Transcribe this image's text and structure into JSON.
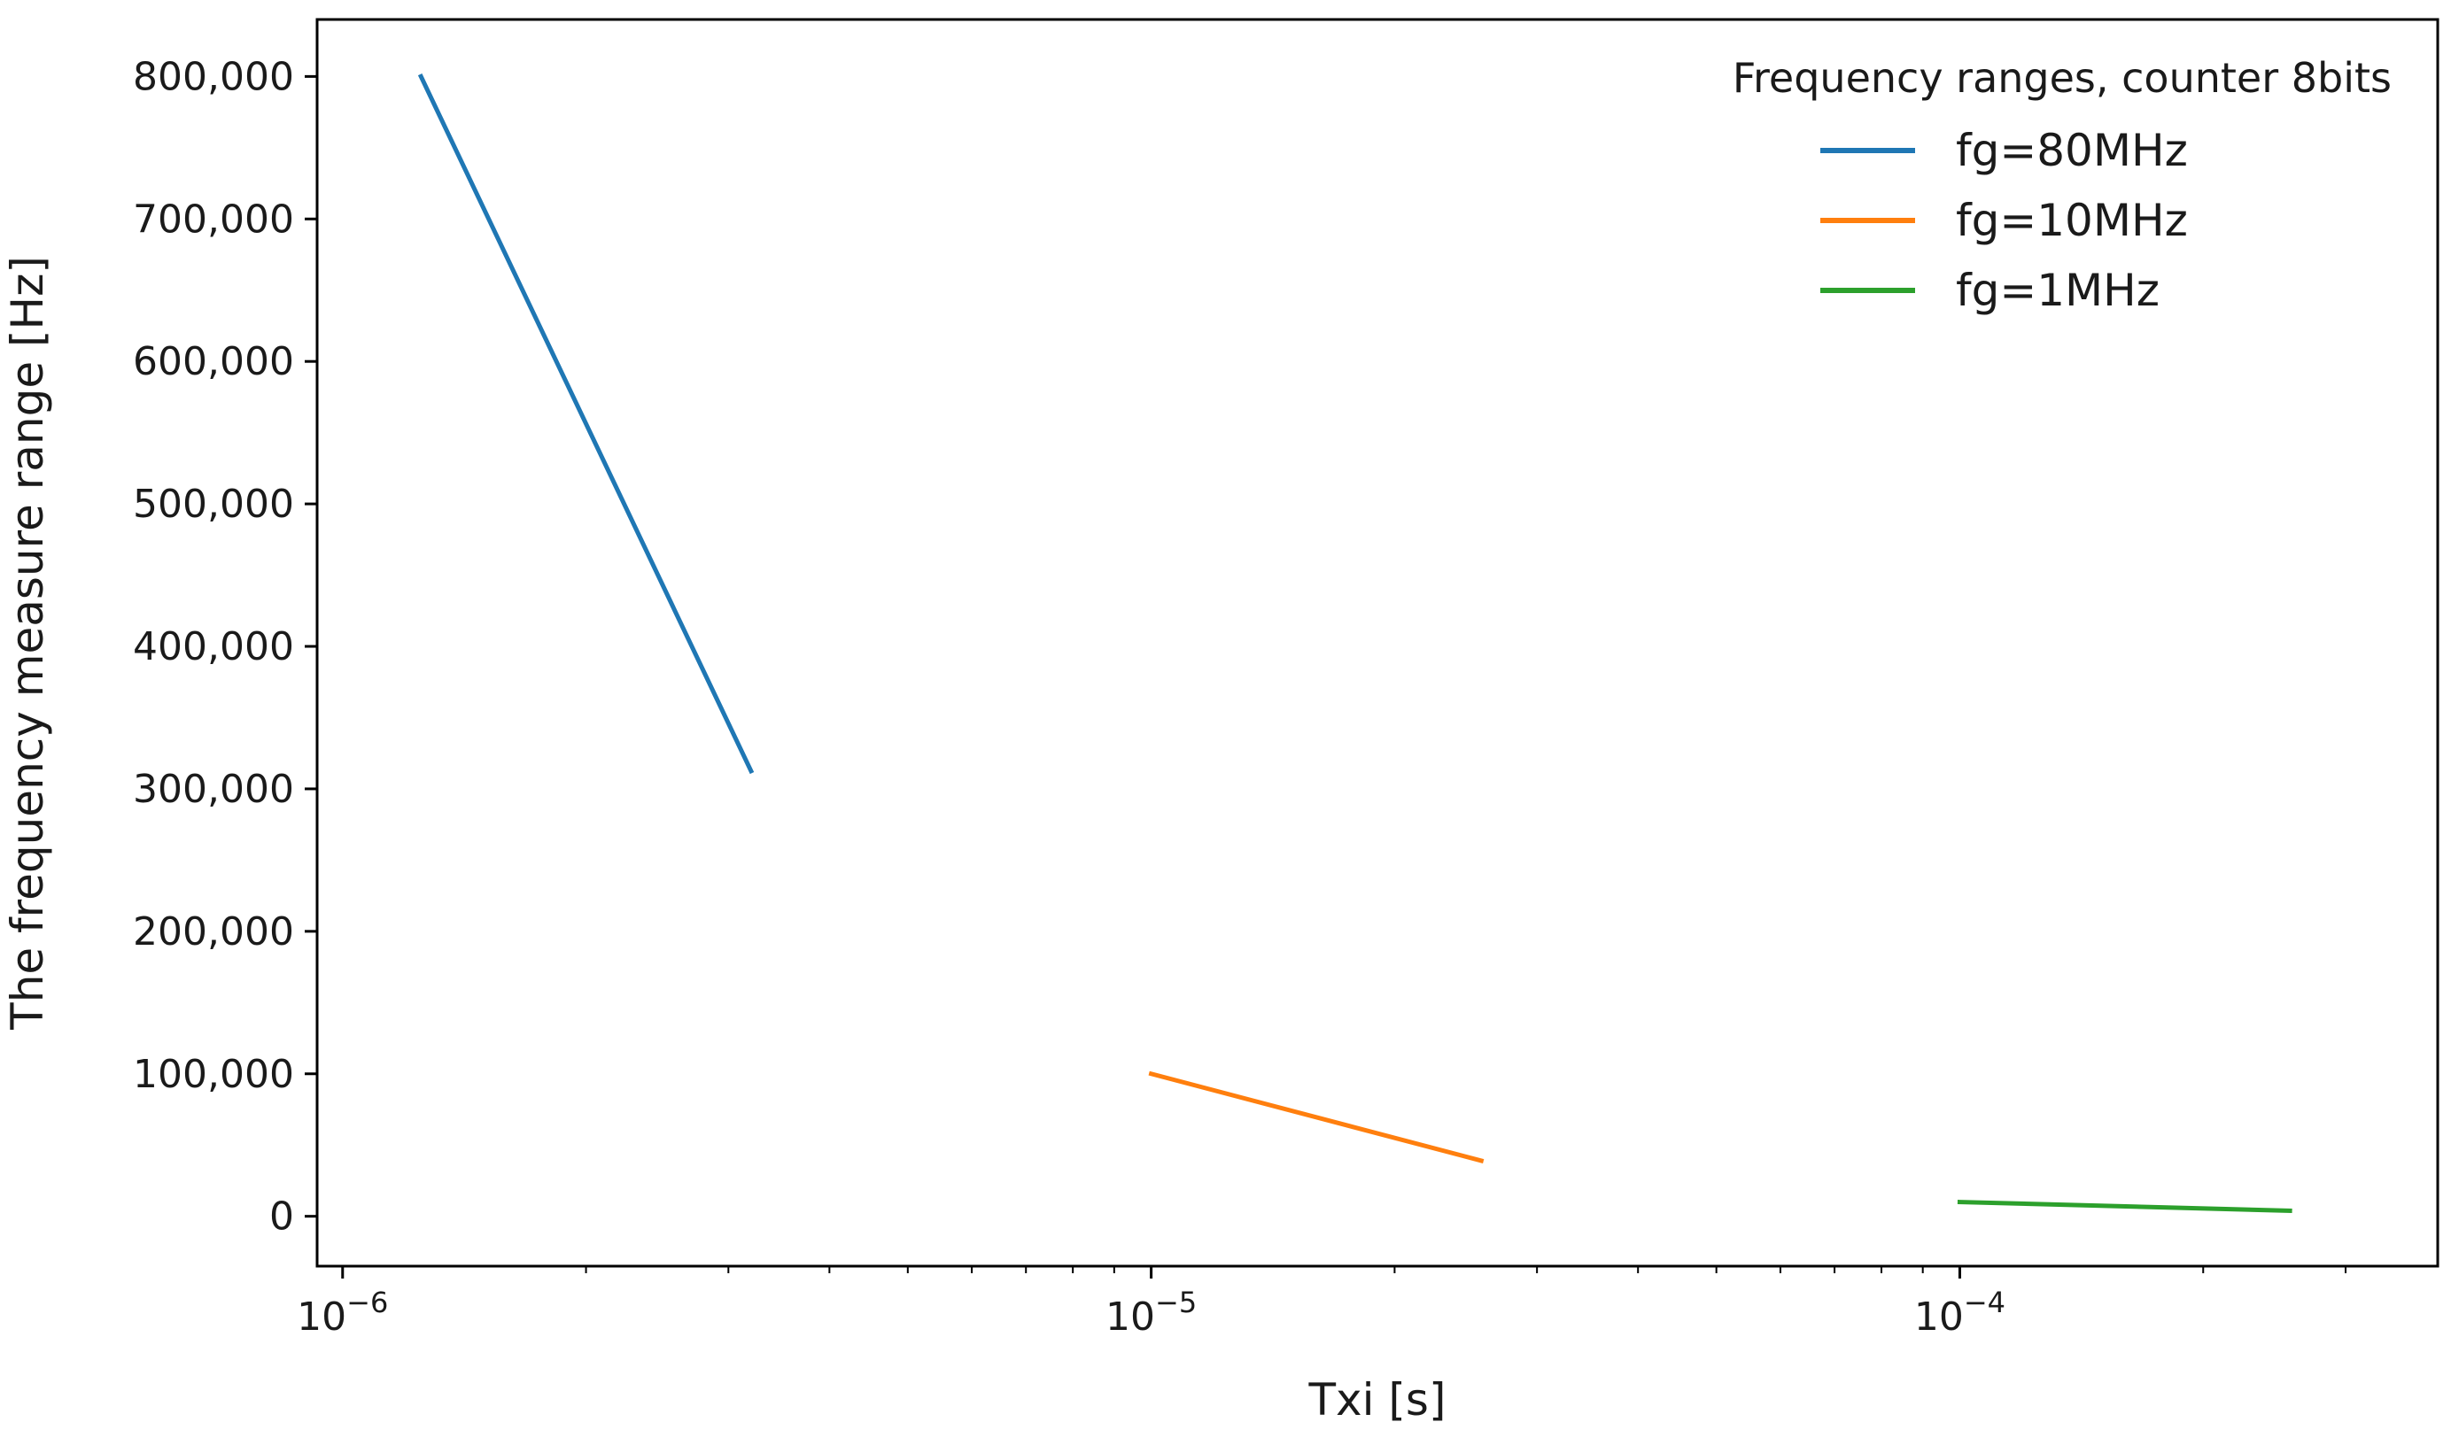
{
  "chart_data": {
    "type": "line",
    "title": "",
    "xlabel": "Txi [s]",
    "ylabel": "The frequency measure range [Hz]",
    "xscale": "log",
    "xlim": [
      9.3e-07,
      0.00039
    ],
    "ylim": [
      -35000,
      840000
    ],
    "grid": false,
    "legend": {
      "title": "Frequency ranges, counter 8bits",
      "position": "top-right"
    },
    "y_ticks": [
      {
        "value": 800000,
        "label": "800,000"
      },
      {
        "value": 700000,
        "label": "700,000"
      },
      {
        "value": 600000,
        "label": "600,000"
      },
      {
        "value": 500000,
        "label": "500,000"
      },
      {
        "value": 400000,
        "label": "400,000"
      },
      {
        "value": 300000,
        "label": "300,000"
      },
      {
        "value": 200000,
        "label": "200,000"
      },
      {
        "value": 100000,
        "label": "100,000"
      },
      {
        "value": 0,
        "label": "0"
      }
    ],
    "x_major_ticks": [
      {
        "value": 1e-06,
        "base": "10",
        "exp": "−6"
      },
      {
        "value": 1e-05,
        "base": "10",
        "exp": "−5"
      },
      {
        "value": 0.0001,
        "base": "10",
        "exp": "−4"
      }
    ],
    "series": [
      {
        "name": "fg=80MHz",
        "color": "#1f77b4",
        "x": [
          1.25e-06,
          3.2e-06
        ],
        "y": [
          800000,
          312500
        ]
      },
      {
        "name": "fg=10MHz",
        "color": "#ff7f0e",
        "x": [
          1e-05,
          2.56e-05
        ],
        "y": [
          100000,
          39000
        ]
      },
      {
        "name": "fg=1MHz",
        "color": "#2ca02c",
        "x": [
          0.0001,
          0.000256
        ],
        "y": [
          10000,
          3900
        ]
      }
    ]
  }
}
